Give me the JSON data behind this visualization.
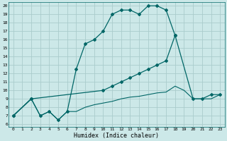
{
  "xlabel": "Humidex (Indice chaleur)",
  "xlim": [
    -0.5,
    23.5
  ],
  "ylim": [
    6,
    20
  ],
  "xticks": [
    0,
    1,
    2,
    3,
    4,
    5,
    6,
    7,
    8,
    9,
    10,
    11,
    12,
    13,
    14,
    15,
    16,
    17,
    18,
    19,
    20,
    21,
    22,
    23
  ],
  "yticks": [
    6,
    7,
    8,
    9,
    10,
    11,
    12,
    13,
    14,
    15,
    16,
    17,
    18,
    19,
    20
  ],
  "bg_color": "#cce8e8",
  "grid_color": "#aacccc",
  "line_color": "#006666",
  "curve1_x": [
    0,
    2,
    3,
    4,
    5,
    6,
    7,
    8,
    9,
    10,
    11,
    12,
    13,
    14,
    15,
    16,
    17,
    18
  ],
  "curve1_y": [
    7.0,
    9.0,
    7.0,
    7.5,
    6.5,
    7.5,
    12.5,
    15.5,
    16.0,
    17.0,
    19.0,
    19.5,
    19.5,
    19.0,
    20.0,
    20.0,
    19.5,
    16.5
  ],
  "curve2_x": [
    0,
    2,
    10,
    11,
    12,
    13,
    14,
    15,
    16,
    17,
    18,
    20,
    21,
    22,
    23
  ],
  "curve2_y": [
    7.0,
    9.0,
    10.0,
    10.5,
    11.0,
    11.5,
    12.0,
    12.5,
    13.0,
    13.5,
    16.5,
    9.0,
    9.0,
    9.5,
    9.5
  ],
  "curve3_x": [
    0,
    2,
    3,
    4,
    5,
    6,
    7,
    8,
    9,
    10,
    11,
    12,
    13,
    14,
    15,
    16,
    17,
    18,
    19,
    20,
    21,
    22,
    23
  ],
  "curve3_y": [
    7.0,
    9.0,
    7.0,
    7.5,
    6.5,
    7.5,
    7.5,
    8.0,
    8.3,
    8.5,
    8.7,
    9.0,
    9.2,
    9.3,
    9.5,
    9.7,
    9.8,
    10.5,
    10.0,
    9.0,
    9.0,
    9.0,
    9.5
  ]
}
